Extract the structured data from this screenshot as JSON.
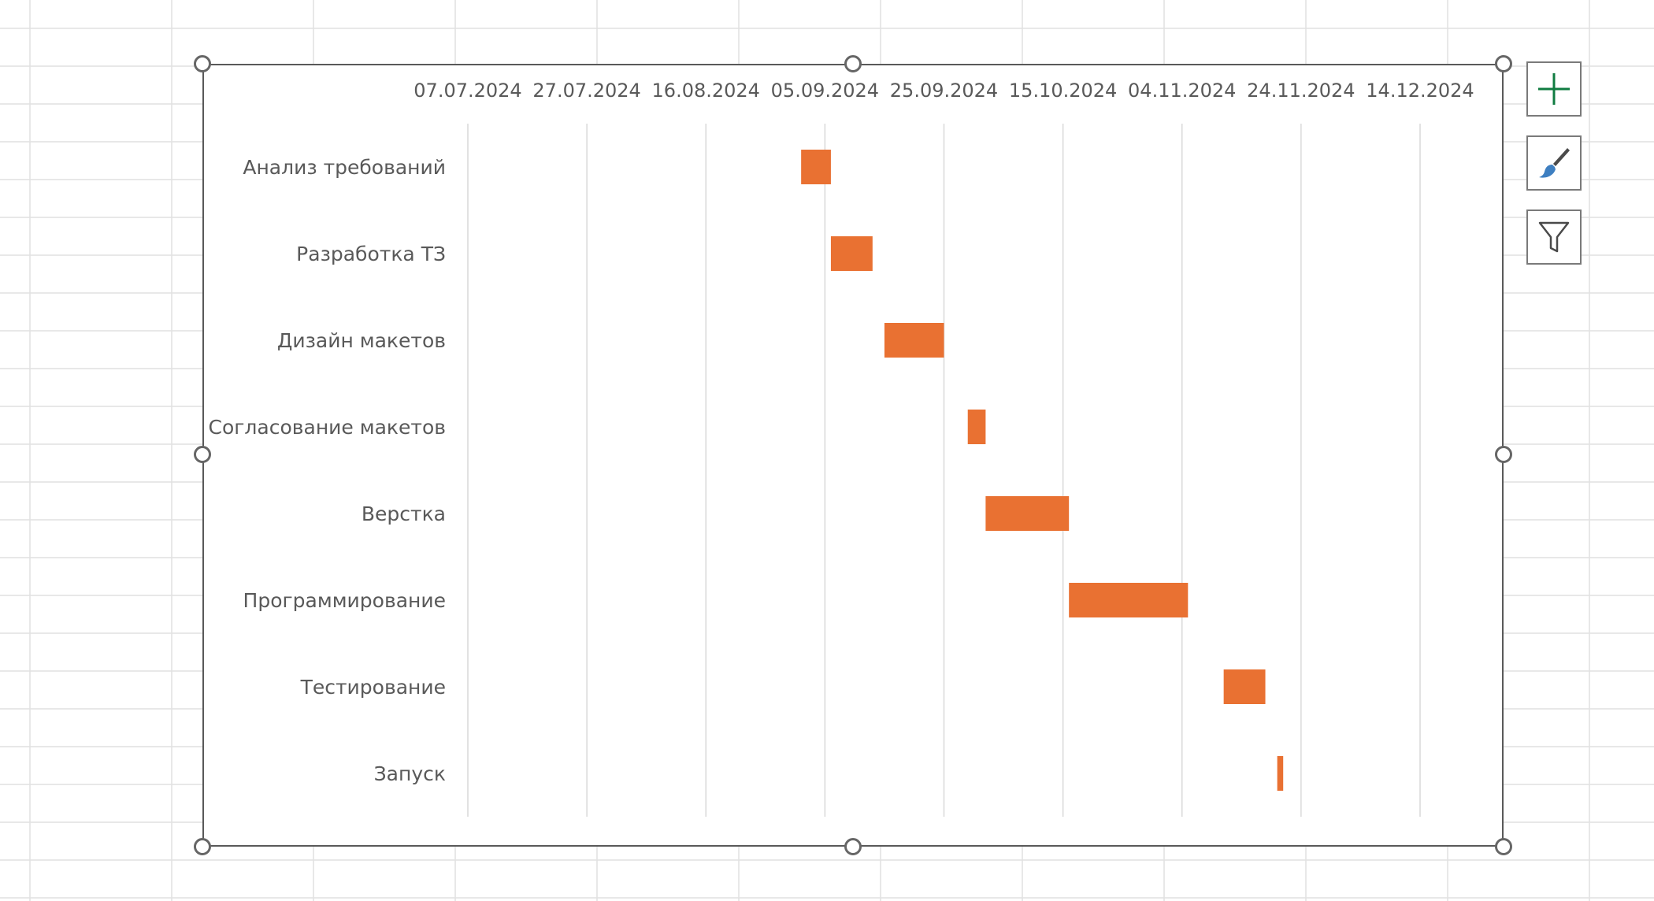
{
  "colors": {
    "bar": "#E97132",
    "gridline": "#D9D9D9",
    "sheet_grid": "#E1E1E1",
    "label_text": "#595959",
    "frame": "#595959",
    "add_element_icon": "#107C41",
    "brush_icon": "#3E7FC1"
  },
  "side_buttons": [
    {
      "name": "chart-elements-button",
      "icon": "plus-icon"
    },
    {
      "name": "chart-styles-button",
      "icon": "paintbrush-icon"
    },
    {
      "name": "chart-filters-button",
      "icon": "funnel-icon"
    }
  ],
  "chart_data": {
    "type": "bar",
    "orientation": "horizontal",
    "stacked_gantt": true,
    "x_axis_position": "top",
    "x_type": "date",
    "x_ticks": [
      "07.07.2024",
      "27.07.2024",
      "16.08.2024",
      "05.09.2024",
      "25.09.2024",
      "15.10.2024",
      "04.11.2024",
      "24.11.2024",
      "14.12.2024"
    ],
    "xlim": [
      "07.07.2024",
      "14.12.2024"
    ],
    "grid": {
      "vertical": true,
      "horizontal": false
    },
    "legend": "none",
    "categories": [
      "Анализ требований",
      "Разработка ТЗ",
      "Дизайн макетов",
      "Согласование макетов",
      "Верстка",
      "Программирование",
      "Тестирование",
      "Запуск"
    ],
    "tasks": [
      {
        "start": "01.09.2024",
        "end": "06.09.2024"
      },
      {
        "start": "06.09.2024",
        "end": "13.09.2024"
      },
      {
        "start": "15.09.2024",
        "end": "25.09.2024"
      },
      {
        "start": "29.09.2024",
        "end": "02.10.2024"
      },
      {
        "start": "02.10.2024",
        "end": "16.10.2024"
      },
      {
        "start": "16.10.2024",
        "end": "05.11.2024"
      },
      {
        "start": "11.11.2024",
        "end": "18.11.2024"
      },
      {
        "start": "20.11.2024",
        "end": "21.11.2024"
      }
    ]
  }
}
